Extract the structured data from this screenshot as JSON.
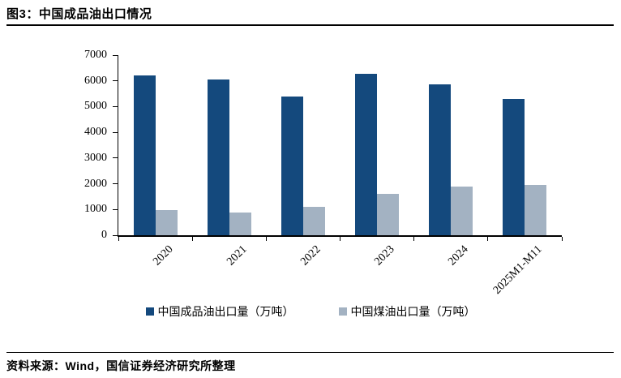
{
  "page": {
    "figure_title": "图3：中国成品油出口情况",
    "source_note": "资料来源：Wind，国信证券经济研究所整理"
  },
  "chart_data": {
    "type": "bar",
    "title": "中国成品油出口情况",
    "categories": [
      "2020",
      "2021",
      "2022",
      "2023",
      "2024",
      "2025M1-M11"
    ],
    "series": [
      {
        "name": "中国成品油出口量（万吨）",
        "color": "#14497D",
        "values": [
          6200,
          6050,
          5400,
          6270,
          5850,
          5300
        ]
      },
      {
        "name": "中国煤油出口量（万吨）",
        "color": "#A3B2C2",
        "values": [
          980,
          870,
          1100,
          1600,
          1900,
          1950
        ]
      }
    ],
    "ylim": [
      0,
      7000
    ],
    "yticks": [
      0,
      1000,
      2000,
      3000,
      4000,
      5000,
      6000,
      7000
    ],
    "grid": false,
    "legend_position": "bottom"
  }
}
